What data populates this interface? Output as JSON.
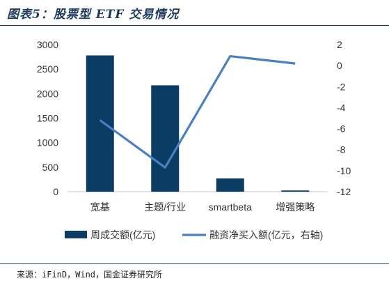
{
  "title": "图表5：股票型 ETF 交易情况",
  "source": "来源：iFinD，Wind，国金证券研究所",
  "chart_data": {
    "type": "bar",
    "categories": [
      "宽基",
      "主题/行业",
      "smartbeta",
      "增强策略"
    ],
    "series": [
      {
        "name": "周成交额(亿元)",
        "type": "bar",
        "axis": "left",
        "color": "#0b3c63",
        "values": [
          2780,
          2170,
          270,
          25
        ]
      },
      {
        "name": "融资净买入额(亿元，右轴)",
        "type": "line",
        "axis": "right",
        "color": "#4a7fc1",
        "values": [
          -5.2,
          -9.7,
          0.9,
          0.2
        ]
      }
    ],
    "ylim": [
      0,
      3000
    ],
    "y_ticks": [
      "0",
      "500",
      "1000",
      "1500",
      "2000",
      "2500",
      "3000"
    ],
    "y2lim": [
      -12,
      2
    ],
    "y2_ticks": [
      "-12",
      "-10",
      "-8",
      "-6",
      "-4",
      "-2",
      "0",
      "2"
    ],
    "legend": "bottom",
    "grid": false
  }
}
